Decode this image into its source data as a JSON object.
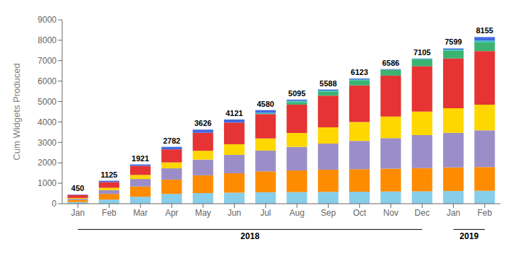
{
  "chart_data": {
    "type": "bar",
    "stacked": true,
    "ylabel": "Cum Widgets Produced",
    "categories": [
      "Jan",
      "Feb",
      "Mar",
      "Apr",
      "May",
      "Jun",
      "Jul",
      "Aug",
      "Sep",
      "Oct",
      "Nov",
      "Dec",
      "Jan",
      "Feb"
    ],
    "series": [
      {
        "color": "#87CEEB",
        "values": [
          80,
          200,
          340,
          480,
          520,
          540,
          560,
          570,
          580,
          590,
          600,
          610,
          620,
          630
        ]
      },
      {
        "color": "#FF8C00",
        "values": [
          100,
          280,
          500,
          700,
          870,
          950,
          1020,
          1060,
          1080,
          1100,
          1110,
          1130,
          1150,
          1160
        ]
      },
      {
        "color": "#9B8EC8",
        "values": [
          60,
          180,
          370,
          550,
          770,
          900,
          1020,
          1150,
          1280,
          1380,
          1500,
          1620,
          1700,
          1800
        ]
      },
      {
        "color": "#FFD700",
        "values": [
          40,
          120,
          200,
          290,
          430,
          520,
          590,
          680,
          800,
          930,
          1060,
          1150,
          1200,
          1260
        ]
      },
      {
        "color": "#E63333",
        "values": [
          150,
          280,
          440,
          640,
          880,
          1060,
          1200,
          1390,
          1550,
          1790,
          2000,
          2220,
          2440,
          2620
        ]
      },
      {
        "color": "#3CB371",
        "values": [
          0,
          0,
          0,
          0,
          0,
          0,
          0,
          120,
          200,
          240,
          290,
          330,
          380,
          430
        ]
      },
      {
        "color": "#2EC4B6",
        "values": [
          0,
          0,
          0,
          0,
          0,
          0,
          60,
          70,
          50,
          50,
          0,
          30,
          60,
          80
        ]
      },
      {
        "color": "#4169E1",
        "values": [
          20,
          65,
          71,
          122,
          156,
          151,
          130,
          55,
          48,
          43,
          26,
          15,
          49,
          175
        ]
      }
    ],
    "totals": [
      450,
      1125,
      1921,
      2782,
      3626,
      4121,
      4580,
      5095,
      5588,
      6123,
      6586,
      7105,
      7599,
      8155
    ],
    "annotations": [
      {
        "text": "2018",
        "from": 0,
        "to": 11
      },
      {
        "text": "2019",
        "from": 12,
        "to": 13
      }
    ],
    "ylim": [
      0,
      9000
    ],
    "yticks": [
      0,
      1000,
      2000,
      3000,
      4000,
      5000,
      6000,
      7000,
      8000,
      9000
    ],
    "grid": false
  }
}
